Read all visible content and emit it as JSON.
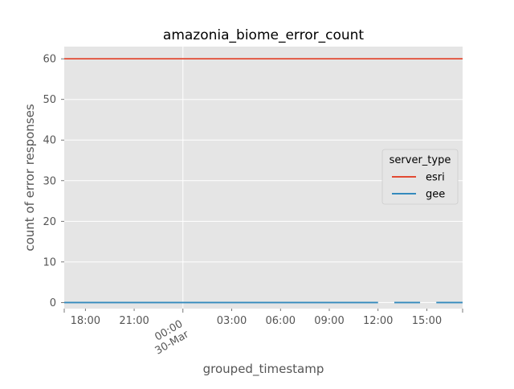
{
  "chart_data": {
    "type": "line",
    "title": "amazonia_biome_error_count",
    "xlabel": "grouped_timestamp",
    "ylabel": "count of error responses",
    "ylim": [
      -1.5,
      63
    ],
    "xlim": [
      "2019-03-29 16:42",
      "2019-03-30 17:12"
    ],
    "xticks": [
      {
        "label": "18:00",
        "t": "2019-03-29 18:00"
      },
      {
        "label": "21:00",
        "t": "2019-03-29 21:00"
      },
      {
        "label": "00:00",
        "sublabel": "30-Mar",
        "t": "2019-03-30 00:00",
        "major": true
      },
      {
        "label": "03:00",
        "t": "2019-03-30 03:00"
      },
      {
        "label": "06:00",
        "t": "2019-03-30 06:00"
      },
      {
        "label": "09:00",
        "t": "2019-03-30 09:00"
      },
      {
        "label": "12:00",
        "t": "2019-03-30 12:00"
      },
      {
        "label": "15:00",
        "t": "2019-03-30 15:00"
      }
    ],
    "yticks": [
      0,
      10,
      20,
      30,
      40,
      50,
      60
    ],
    "grid": true,
    "legend": {
      "title": "server_type",
      "position": "center-right"
    },
    "series": [
      {
        "name": "esri",
        "color": "#E24A33",
        "segments": [
          {
            "x": [
              "2019-03-29 16:42",
              "2019-03-30 17:12"
            ],
            "y": [
              60,
              60
            ]
          }
        ]
      },
      {
        "name": "gee",
        "color": "#348ABD",
        "segments": [
          {
            "x": [
              "2019-03-29 16:42",
              "2019-03-30 12:00"
            ],
            "y": [
              0,
              0
            ]
          },
          {
            "x": [
              "2019-03-30 13:00",
              "2019-03-30 14:35"
            ],
            "y": [
              0,
              0
            ]
          },
          {
            "x": [
              "2019-03-30 15:35",
              "2019-03-30 17:12"
            ],
            "y": [
              0,
              0
            ]
          }
        ]
      }
    ]
  }
}
